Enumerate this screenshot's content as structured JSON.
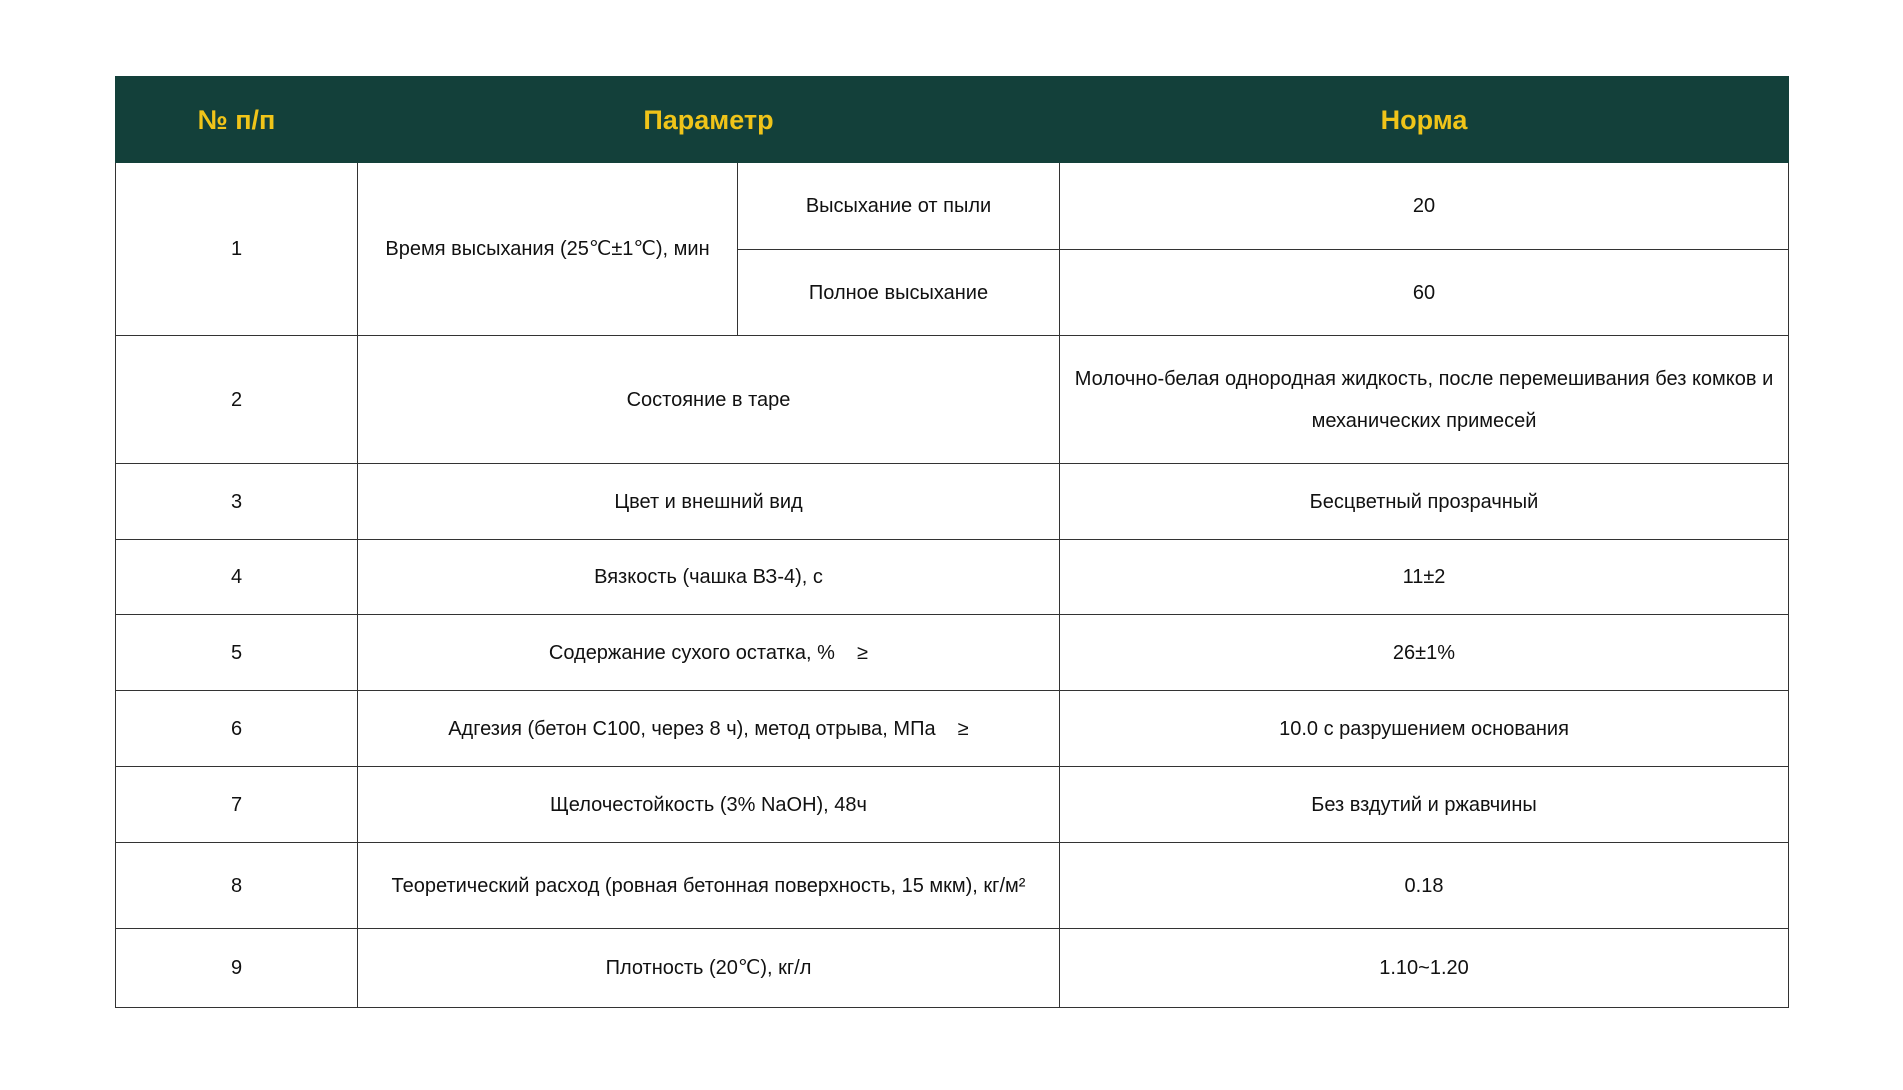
{
  "header": {
    "num": "№  п/п",
    "param": "Параметр",
    "norm": "Норма"
  },
  "header_colors": {
    "background": "#13403a",
    "text": "#f0c419"
  },
  "rows": [
    {
      "num": "1",
      "param": "Время высыхания (25℃±1℃), мин",
      "sub": [
        {
          "param": "Высыхание от пыли",
          "norm": "20"
        },
        {
          "param": "Полное высыхание",
          "norm": "60"
        }
      ]
    },
    {
      "num": "2",
      "param": "Состояние в таре",
      "norm": "Молочно-белая однородная жидкость, после перемешивания без комков и механических примесей"
    },
    {
      "num": "3",
      "param": "Цвет и внешний вид",
      "norm": "Бесцветный прозрачный"
    },
    {
      "num": "4",
      "param": "Вязкость (чашка ВЗ-4), с",
      "norm": "11±2"
    },
    {
      "num": "5",
      "param": "Содержание сухого остатка, %    ≥",
      "norm": "26±1%"
    },
    {
      "num": "6",
      "param": "Адгезия (бетон С100, через 8 ч), метод отрыва, МПа    ≥",
      "norm": "10.0 с разрушением основания"
    },
    {
      "num": "7",
      "param": "Щелочестойкость (3% NaOH), 48ч",
      "norm": "Без вздутий и ржавчины"
    },
    {
      "num": "8",
      "param": "Теоретический расход (ровная бетонная поверхность, 15 мкм), кг/м²",
      "norm": "0.18"
    },
    {
      "num": "9",
      "param": "Плотность (20℃), кг/л",
      "norm": "1.10~1.20"
    }
  ]
}
